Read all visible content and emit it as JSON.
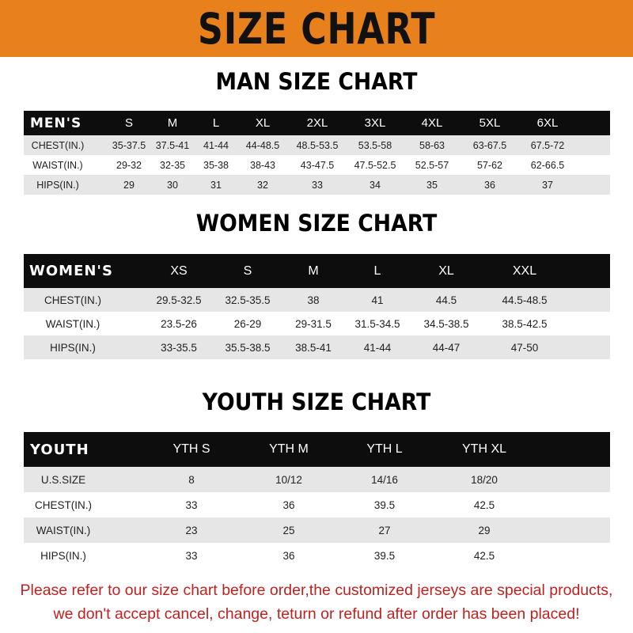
{
  "banner": {
    "title": "SIZE CHART",
    "color": "#e8801c"
  },
  "men": {
    "title": "MAN SIZE CHART",
    "header": [
      "MEN'S",
      "S",
      "M",
      "L",
      "XL",
      "2XL",
      "3XL",
      "4XL",
      "5XL",
      "6XL"
    ],
    "rows": [
      [
        "CHEST(IN.)",
        "35-37.5",
        "37.5-41",
        "41-44",
        "44-48.5",
        "48.5-53.5",
        "53.5-58",
        "58-63",
        "63-67.5",
        "67.5-72"
      ],
      [
        "WAIST(IN.)",
        "29-32",
        "32-35",
        "35-38",
        "38-43",
        "43-47.5",
        "47.5-52.5",
        "52.5-57",
        "57-62",
        "62-66.5"
      ],
      [
        "HIPS(IN.)",
        "29",
        "30",
        "31",
        "32",
        "33",
        "34",
        "35",
        "36",
        "37"
      ]
    ]
  },
  "women": {
    "title": "WOMEN SIZE CHART",
    "header": [
      "WOMEN'S",
      "XS",
      "S",
      "M",
      "L",
      "XL",
      "XXL"
    ],
    "rows": [
      [
        "CHEST(IN.)",
        "29.5-32.5",
        "32.5-35.5",
        "38",
        "41",
        "44.5",
        "44.5-48.5"
      ],
      [
        "WAIST(IN.)",
        "23.5-26",
        "26-29",
        "29-31.5",
        "31.5-34.5",
        "34.5-38.5",
        "38.5-42.5"
      ],
      [
        "HIPS(IN.)",
        "33-35.5",
        "35.5-38.5",
        "38.5-41",
        "41-44",
        "44-47",
        "47-50"
      ]
    ]
  },
  "youth": {
    "title": "YOUTH SIZE CHART",
    "header": [
      "YOUTH",
      "YTH S",
      "YTH M",
      "YTH L",
      "YTH XL"
    ],
    "rows": [
      [
        "U.S.SIZE",
        "8",
        "10/12",
        "14/16",
        "18/20"
      ],
      [
        "CHEST(IN.)",
        "33",
        "36",
        "39.5",
        "42.5"
      ],
      [
        "WAIST(IN.)",
        "23",
        "25",
        "27",
        "29"
      ],
      [
        "HIPS(IN.)",
        "33",
        "36",
        "39.5",
        "42.5"
      ]
    ]
  },
  "note": {
    "line1": "Please refer to our size chart before order,the customized jerseys are special products,",
    "line2": "we don't accept cancel, change, teturn or refund after order has been placed!",
    "color": "#c0211f"
  }
}
